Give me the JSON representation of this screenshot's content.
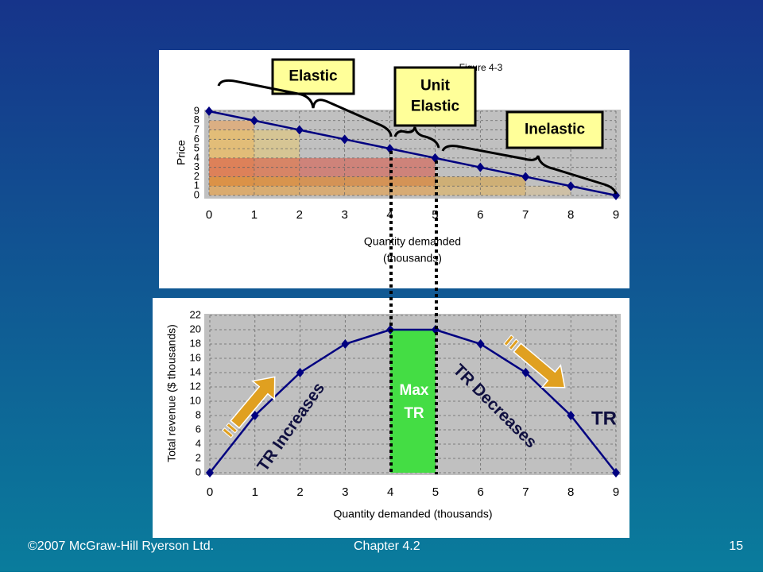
{
  "chart_data": [
    {
      "type": "line",
      "title": "Figure 4-3",
      "x_label": [
        "Quantity demanded",
        "(thousands)"
      ],
      "y_label": "Price",
      "x": [
        0,
        1,
        2,
        3,
        4,
        5,
        6,
        7,
        8,
        9
      ],
      "series": [
        {
          "color": "#000080",
          "values": [
            9,
            8,
            7,
            6,
            5,
            4,
            3,
            2,
            1,
            0
          ]
        }
      ],
      "xlim": [
        0,
        9
      ],
      "ylim": [
        0,
        9
      ],
      "xticks": [
        0,
        1,
        2,
        3,
        4,
        5,
        6,
        7,
        8,
        9
      ],
      "yticks": [
        0,
        1,
        2,
        3,
        4,
        5,
        6,
        7,
        8,
        9
      ],
      "grid": true,
      "annotations": [
        {
          "lines": [
            "Elastic"
          ]
        },
        {
          "lines": [
            "Unit",
            "Elastic"
          ]
        },
        {
          "lines": [
            "Inelastic"
          ]
        }
      ]
    },
    {
      "type": "line",
      "x_label": [
        "Quantity demanded (thousands)"
      ],
      "y_label": "Total revenue ($ thousands)",
      "x": [
        0,
        1,
        2,
        3,
        4,
        5,
        6,
        7,
        8,
        9
      ],
      "series": [
        {
          "name": "TR",
          "color": "#000080",
          "values": [
            0,
            8,
            14,
            18,
            20,
            20,
            18,
            14,
            8,
            0
          ]
        }
      ],
      "xlim": [
        0,
        9
      ],
      "ylim": [
        0,
        22
      ],
      "xticks": [
        0,
        1,
        2,
        3,
        4,
        5,
        6,
        7,
        8,
        9
      ],
      "yticks": [
        0,
        2,
        4,
        6,
        8,
        10,
        12,
        14,
        16,
        18,
        20,
        22
      ],
      "grid": true,
      "annotations": [
        {
          "lines": [
            "Max",
            "TR"
          ]
        },
        {
          "lines": [
            "TR Increases"
          ]
        },
        {
          "lines": [
            "TR Decreases"
          ]
        }
      ]
    }
  ],
  "footer": {
    "left": "©2007 McGraw-Hill Ryerson Ltd.",
    "center": "Chapter 4.2",
    "page": "15"
  }
}
